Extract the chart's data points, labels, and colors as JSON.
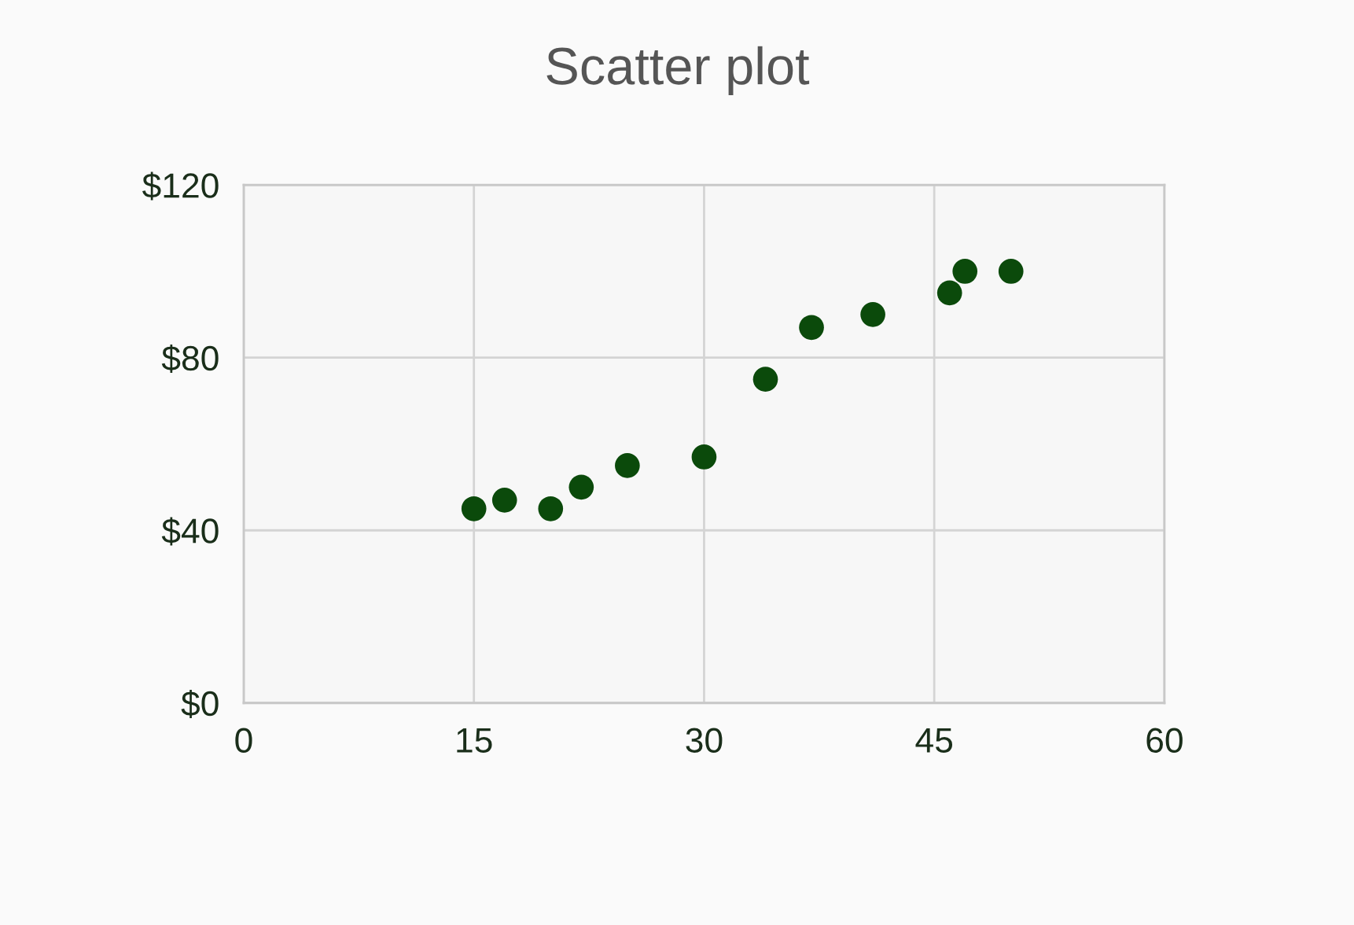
{
  "chart_data": {
    "type": "scatter",
    "title": "Scatter plot",
    "x": [
      15,
      17,
      20,
      22,
      25,
      30,
      34,
      37,
      41,
      46,
      47,
      50
    ],
    "values": [
      45,
      47,
      45,
      50,
      55,
      57,
      75,
      87,
      90,
      95,
      100,
      100
    ],
    "color": "#0b4a0b",
    "marker": "circle",
    "xlim": [
      0,
      60
    ],
    "xticks": [
      0,
      15,
      30,
      45,
      60
    ],
    "ylim": [
      0,
      120
    ],
    "yticks": [
      {
        "value": 0,
        "label": "$0"
      },
      {
        "value": 40,
        "label": "$40"
      },
      {
        "value": 80,
        "label": "$80"
      },
      {
        "value": 120,
        "label": "$120"
      }
    ],
    "grid": true
  }
}
